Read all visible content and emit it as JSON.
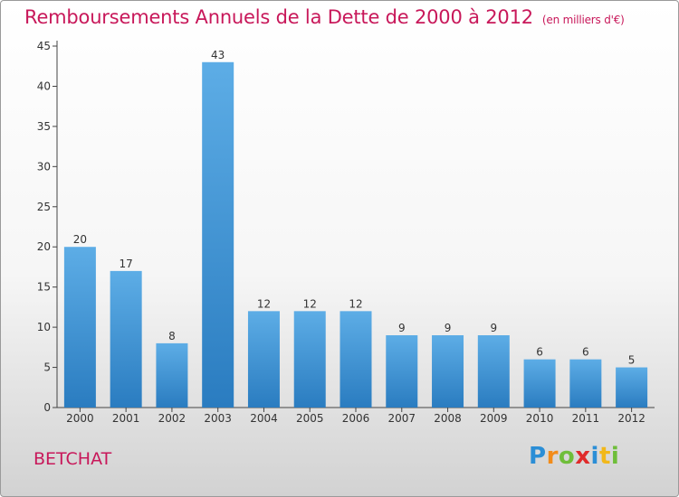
{
  "header": {
    "title": "Remboursements Annuels de la Dette de 2000 à 2012",
    "unit": "(en milliers d'€)"
  },
  "footer": {
    "place": "BETCHAT",
    "brand": [
      "P",
      "r",
      "o",
      "x",
      "i",
      "t",
      "i"
    ]
  },
  "chart_data": {
    "type": "bar",
    "title": "Remboursements Annuels de la Dette de 2000 à 2012",
    "subtitle": "(en milliers d'€)",
    "xlabel": "",
    "ylabel": "",
    "categories": [
      "2000",
      "2001",
      "2002",
      "2003",
      "2004",
      "2005",
      "2006",
      "2007",
      "2008",
      "2009",
      "2010",
      "2011",
      "2012"
    ],
    "values": [
      20,
      17,
      8,
      43,
      12,
      12,
      12,
      9,
      9,
      9,
      6,
      6,
      5
    ],
    "ylim": [
      0,
      45
    ],
    "yticks": [
      0,
      5,
      10,
      15,
      20,
      25,
      30,
      35,
      40,
      45
    ],
    "grid": false,
    "legend": "none",
    "colors": {
      "bar_top": "#5dade6",
      "bar_bottom": "#2a7cc0"
    }
  }
}
